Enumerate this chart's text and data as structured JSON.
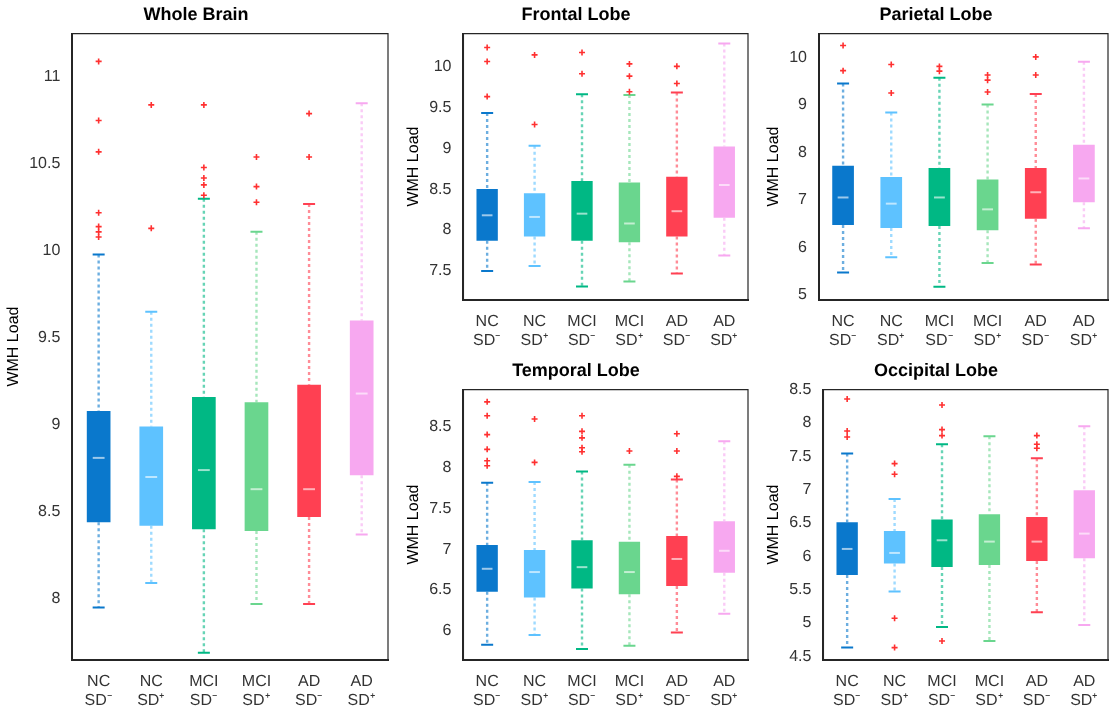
{
  "chart_data": [
    {
      "type": "box",
      "title": "Whole Brain",
      "ylabel": "WMH Load",
      "categories": [
        "NC SD⁻",
        "NC SD⁺",
        "MCI SD⁻",
        "MCI SD⁺",
        "AD SD⁻",
        "AD SD⁺"
      ],
      "colors": [
        "#0a78cc",
        "#5ec2ff",
        "#00b884",
        "#6ad68e",
        "#ff4052",
        "#f7a8f0"
      ],
      "ylim": [
        7.65,
        11.25
      ],
      "yticks": [
        8,
        8.5,
        9,
        9.5,
        10,
        10.5,
        11
      ],
      "grid": false,
      "boxes": [
        {
          "low": 7.95,
          "q1": 8.44,
          "median": 8.81,
          "q3": 9.08,
          "high": 9.98,
          "outliers": [
            11.09,
            10.75,
            10.57,
            10.22,
            10.14,
            10.11,
            10.08
          ]
        },
        {
          "low": 8.09,
          "q1": 8.42,
          "median": 8.7,
          "q3": 8.99,
          "high": 9.65,
          "outliers": [
            10.84,
            10.13
          ]
        },
        {
          "low": 7.69,
          "q1": 8.4,
          "median": 8.74,
          "q3": 9.16,
          "high": 10.3,
          "outliers": [
            10.84,
            10.48,
            10.42,
            10.38,
            10.32
          ]
        },
        {
          "low": 7.97,
          "q1": 8.39,
          "median": 8.63,
          "q3": 9.13,
          "high": 10.11,
          "outliers": [
            10.54,
            10.37,
            10.28
          ]
        },
        {
          "low": 7.97,
          "q1": 8.47,
          "median": 8.63,
          "q3": 9.23,
          "high": 10.27,
          "outliers": [
            10.79,
            10.54
          ]
        },
        {
          "low": 8.37,
          "q1": 8.71,
          "median": 9.18,
          "q3": 9.6,
          "high": 10.85
        }
      ]
    },
    {
      "type": "box",
      "title": "Frontal Lobe",
      "ylabel": "WMH Load",
      "categories": [
        "NC SD⁻",
        "NC SD⁺",
        "MCI SD⁻",
        "MCI SD⁺",
        "AD SD⁻",
        "AD SD⁺"
      ],
      "colors": [
        "#0a78cc",
        "#5ec2ff",
        "#00b884",
        "#6ad68e",
        "#ff4052",
        "#f7a8f0"
      ],
      "ylim": [
        7.15,
        10.4
      ],
      "yticks": [
        7.5,
        8,
        8.5,
        9,
        9.5,
        10
      ],
      "grid": false,
      "boxes": [
        {
          "low": 7.5,
          "q1": 7.87,
          "median": 8.18,
          "q3": 8.5,
          "high": 9.43,
          "outliers": [
            10.23,
            10.06,
            9.63
          ]
        },
        {
          "low": 7.56,
          "q1": 7.92,
          "median": 8.16,
          "q3": 8.45,
          "high": 9.03,
          "outliers": [
            10.14,
            9.29
          ]
        },
        {
          "low": 7.31,
          "q1": 7.87,
          "median": 8.2,
          "q3": 8.6,
          "high": 9.66,
          "outliers": [
            10.17,
            9.91
          ]
        },
        {
          "low": 7.37,
          "q1": 7.85,
          "median": 8.08,
          "q3": 8.58,
          "high": 9.65,
          "outliers": [
            10.03,
            9.88,
            9.69
          ]
        },
        {
          "low": 7.47,
          "q1": 7.92,
          "median": 8.23,
          "q3": 8.65,
          "high": 9.68,
          "outliers": [
            10.0,
            9.79
          ]
        },
        {
          "low": 7.69,
          "q1": 8.15,
          "median": 8.55,
          "q3": 9.02,
          "high": 10.28
        }
      ]
    },
    {
      "type": "box",
      "title": "Parietal Lobe",
      "ylabel": "WMH Load",
      "categories": [
        "NC SD⁻",
        "NC SD⁺",
        "MCI SD⁻",
        "MCI SD⁺",
        "AD SD⁻",
        "AD SD⁺"
      ],
      "colors": [
        "#0a78cc",
        "#5ec2ff",
        "#00b884",
        "#6ad68e",
        "#ff4052",
        "#f7a8f0"
      ],
      "ylim": [
        4.9,
        10.5
      ],
      "yticks": [
        5,
        6,
        7,
        8,
        9,
        10
      ],
      "grid": false,
      "boxes": [
        {
          "low": 5.47,
          "q1": 6.47,
          "median": 7.05,
          "q3": 7.72,
          "high": 9.45,
          "outliers": [
            10.25,
            9.72
          ]
        },
        {
          "low": 5.79,
          "q1": 6.41,
          "median": 6.92,
          "q3": 7.48,
          "high": 8.84,
          "outliers": [
            9.85,
            9.25
          ]
        },
        {
          "low": 5.17,
          "q1": 6.45,
          "median": 7.05,
          "q3": 7.67,
          "high": 9.57,
          "outliers": [
            9.81,
            9.71
          ]
        },
        {
          "low": 5.67,
          "q1": 6.36,
          "median": 6.8,
          "q3": 7.43,
          "high": 9.01,
          "outliers": [
            9.63,
            9.52,
            9.27
          ]
        },
        {
          "low": 5.64,
          "q1": 6.6,
          "median": 7.16,
          "q3": 7.67,
          "high": 9.23,
          "outliers": [
            10.01,
            9.63
          ]
        },
        {
          "low": 6.4,
          "q1": 6.95,
          "median": 7.45,
          "q3": 8.16,
          "high": 9.91
        }
      ]
    },
    {
      "type": "box",
      "title": "Temporal Lobe",
      "ylabel": "WMH Load",
      "categories": [
        "NC SD⁻",
        "NC SD⁺",
        "MCI SD⁻",
        "MCI SD⁺",
        "AD SD⁻",
        "AD SD⁺"
      ],
      "colors": [
        "#0a78cc",
        "#5ec2ff",
        "#00b884",
        "#6ad68e",
        "#ff4052",
        "#f7a8f0"
      ],
      "ylim": [
        5.65,
        8.95
      ],
      "yticks": [
        6,
        6.5,
        7,
        7.5,
        8,
        8.5
      ],
      "grid": false,
      "boxes": [
        {
          "low": 5.83,
          "q1": 6.48,
          "median": 6.76,
          "q3": 7.05,
          "high": 7.81,
          "outliers": [
            8.8,
            8.63,
            8.4,
            8.22,
            8.08,
            8.02
          ]
        },
        {
          "low": 5.95,
          "q1": 6.41,
          "median": 6.72,
          "q3": 6.99,
          "high": 7.82,
          "outliers": [
            8.59,
            8.06
          ]
        },
        {
          "low": 5.78,
          "q1": 6.52,
          "median": 6.78,
          "q3": 7.11,
          "high": 7.95,
          "outliers": [
            8.63,
            8.44,
            8.36,
            8.24,
            8.19
          ]
        },
        {
          "low": 5.82,
          "q1": 6.45,
          "median": 6.72,
          "q3": 7.09,
          "high": 8.03,
          "outliers": [
            8.2
          ]
        },
        {
          "low": 5.98,
          "q1": 6.55,
          "median": 6.88,
          "q3": 7.16,
          "high": 7.85,
          "outliers": [
            8.41,
            8.2,
            7.89
          ]
        },
        {
          "low": 6.21,
          "q1": 6.71,
          "median": 6.98,
          "q3": 7.34,
          "high": 8.32
        }
      ]
    },
    {
      "type": "box",
      "title": "Occipital Lobe",
      "ylabel": "WMH Load",
      "categories": [
        "NC SD⁻",
        "NC SD⁺",
        "MCI SD⁻",
        "MCI SD⁺",
        "AD SD⁻",
        "AD SD⁺"
      ],
      "colors": [
        "#0a78cc",
        "#5ec2ff",
        "#00b884",
        "#6ad68e",
        "#ff4052",
        "#f7a8f0"
      ],
      "ylim": [
        4.45,
        8.5
      ],
      "yticks": [
        4.5,
        5,
        5.5,
        6,
        6.5,
        7,
        7.5,
        8,
        8.5
      ],
      "grid": false,
      "boxes": [
        {
          "low": 4.63,
          "q1": 5.72,
          "median": 6.11,
          "q3": 6.51,
          "high": 7.54,
          "outliers": [
            8.36,
            7.88,
            7.79
          ]
        },
        {
          "low": 5.47,
          "q1": 5.89,
          "median": 6.05,
          "q3": 6.38,
          "high": 6.86,
          "outliers": [
            7.39,
            7.23,
            5.07,
            4.63
          ]
        },
        {
          "low": 4.94,
          "q1": 5.84,
          "median": 6.24,
          "q3": 6.55,
          "high": 7.68,
          "outliers": [
            8.27,
            7.9,
            7.81,
            4.73
          ]
        },
        {
          "low": 4.73,
          "q1": 5.87,
          "median": 6.22,
          "q3": 6.63,
          "high": 7.8
        },
        {
          "low": 5.16,
          "q1": 5.93,
          "median": 6.22,
          "q3": 6.59,
          "high": 7.47,
          "outliers": [
            7.81,
            7.68,
            7.62
          ]
        },
        {
          "low": 4.97,
          "q1": 5.97,
          "median": 6.34,
          "q3": 6.99,
          "high": 7.95
        }
      ]
    }
  ]
}
